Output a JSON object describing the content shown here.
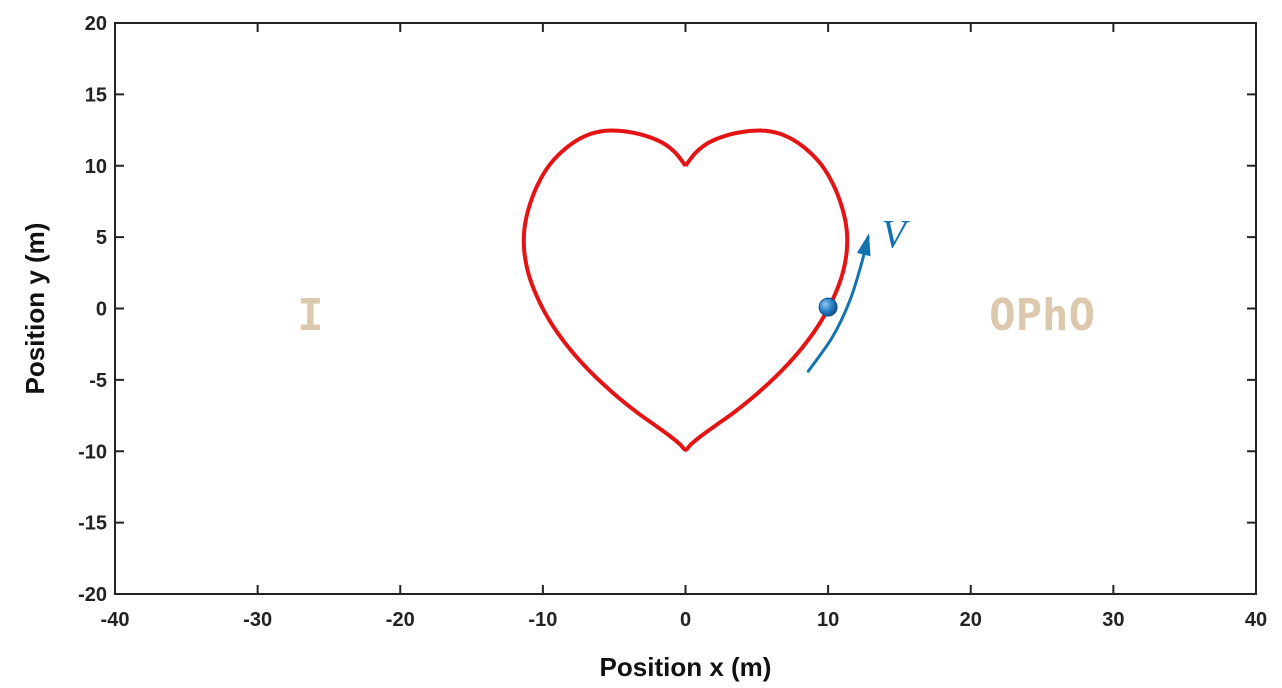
{
  "chart_data": {
    "type": "line",
    "xlabel": "Position x (m)",
    "ylabel": "Position y (m)",
    "xlim": [
      -40,
      40
    ],
    "ylim": [
      -20,
      20
    ],
    "xticks": [
      -40,
      -30,
      -20,
      -10,
      0,
      10,
      20,
      30,
      40
    ],
    "yticks": [
      -20,
      -15,
      -10,
      -5,
      0,
      5,
      10,
      15,
      20
    ],
    "grid": false,
    "series": [
      {
        "color": "#e41414",
        "shape": "heart",
        "points": [
          [
            0,
            10
          ],
          [
            -0.7,
            10.9
          ],
          [
            -1.6,
            11.6
          ],
          [
            -2.8,
            12.1
          ],
          [
            -4.2,
            12.4
          ],
          [
            -5.6,
            12.45
          ],
          [
            -7.0,
            12.1
          ],
          [
            -8.3,
            11.3
          ],
          [
            -9.5,
            10.1
          ],
          [
            -10.4,
            8.6
          ],
          [
            -11.0,
            7.0
          ],
          [
            -11.3,
            5.5
          ],
          [
            -11.3,
            4.0
          ],
          [
            -11.0,
            2.4
          ],
          [
            -10.4,
            0.8
          ],
          [
            -9.5,
            -0.9
          ],
          [
            -8.3,
            -2.6
          ],
          [
            -6.8,
            -4.3
          ],
          [
            -5.1,
            -5.9
          ],
          [
            -3.5,
            -7.2
          ],
          [
            -2.1,
            -8.2
          ],
          [
            -1.0,
            -9.0
          ],
          [
            -0.35,
            -9.55
          ],
          [
            0,
            -9.9
          ],
          [
            0.35,
            -9.55
          ],
          [
            1.0,
            -9.0
          ],
          [
            2.1,
            -8.2
          ],
          [
            3.5,
            -7.2
          ],
          [
            5.1,
            -5.9
          ],
          [
            6.8,
            -4.3
          ],
          [
            8.3,
            -2.6
          ],
          [
            9.5,
            -0.9
          ],
          [
            10.4,
            0.8
          ],
          [
            11.0,
            2.4
          ],
          [
            11.3,
            4.0
          ],
          [
            11.3,
            5.5
          ],
          [
            11.0,
            7.0
          ],
          [
            10.4,
            8.6
          ],
          [
            9.5,
            10.1
          ],
          [
            8.3,
            11.3
          ],
          [
            7.0,
            12.1
          ],
          [
            5.6,
            12.45
          ],
          [
            4.2,
            12.4
          ],
          [
            2.8,
            12.1
          ],
          [
            1.6,
            11.6
          ],
          [
            0.7,
            10.9
          ],
          [
            0,
            10
          ]
        ]
      }
    ],
    "particle": {
      "x": 10,
      "y": 0.1,
      "color": "#1f6fb2"
    },
    "velocity_arrow": {
      "color": "#1273b0",
      "label": "V",
      "points": [
        [
          8.6,
          -4.4
        ],
        [
          10.3,
          -2.0
        ],
        [
          11.5,
          0.5
        ],
        [
          12.3,
          3.0
        ],
        [
          12.8,
          5.0
        ]
      ],
      "label_position": [
        14.6,
        5.1
      ]
    },
    "annotations": [
      {
        "text": "I",
        "x": -26.3,
        "y": -0.4,
        "color": "#dcc9ad"
      },
      {
        "text": "OPhO",
        "x": 25.0,
        "y": -0.4,
        "color": "#dcc9ad"
      }
    ]
  }
}
